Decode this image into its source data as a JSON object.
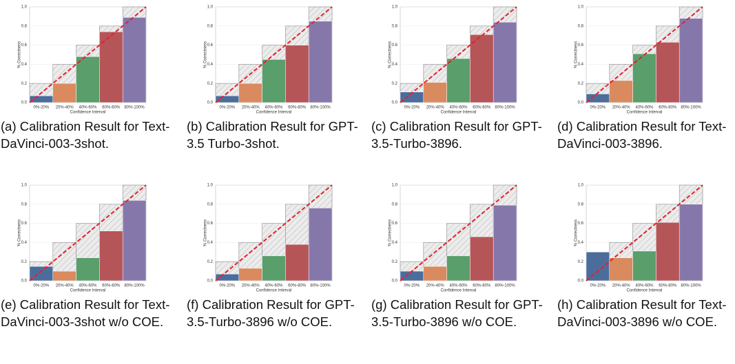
{
  "chart_data": [
    {
      "type": "bar",
      "caption": "(a) Calibration Result for Text-DaVinci-003-3shot.",
      "categories": [
        "0%-20%",
        "20%-40%",
        "40%-60%",
        "60%-80%",
        "80%-100%"
      ],
      "values": [
        0.07,
        0.2,
        0.48,
        0.74,
        0.89
      ],
      "reference": [
        0.2,
        0.4,
        0.6,
        0.8,
        1.0
      ],
      "colors": [
        "#4c6d9c",
        "#d98a5e",
        "#5a9e6b",
        "#b65558",
        "#8677ab"
      ],
      "xlabel": "Confidence Interval",
      "ylabel": "% Correctness",
      "ylim": [
        0,
        1
      ],
      "yticks": [
        {
          "value": 0,
          "label": "0.0"
        },
        0.2,
        0.4,
        0.6,
        0.8,
        {
          "value": 1,
          "label": "1.0"
        }
      ],
      "grid": true
    },
    {
      "type": "bar",
      "caption": "(b) Calibration Result for GPT-3.5 Turbo-3shot.",
      "categories": [
        "0%-20%",
        "20%-40%",
        "40%-60%",
        "60%-80%",
        "80%-100%"
      ],
      "values": [
        0.07,
        0.2,
        0.45,
        0.6,
        0.85
      ],
      "reference": [
        0.2,
        0.4,
        0.6,
        0.8,
        1.0
      ],
      "colors": [
        "#4c6d9c",
        "#d98a5e",
        "#5a9e6b",
        "#b65558",
        "#8677ab"
      ],
      "xlabel": "Confidence Interval",
      "ylabel": "% Correctness",
      "ylim": [
        0,
        1
      ],
      "yticks": [
        {
          "value": 0,
          "label": "0.0"
        },
        0.2,
        0.4,
        0.6,
        0.8,
        {
          "value": 1,
          "label": "1.0"
        }
      ],
      "grid": true
    },
    {
      "type": "bar",
      "caption": "(c) Calibration Result for GPT-3.5-Turbo-3896.",
      "categories": [
        "0%-20%",
        "20%-40%",
        "40%-60%",
        "60%-80%",
        "80%-100%"
      ],
      "values": [
        0.11,
        0.21,
        0.46,
        0.71,
        0.84
      ],
      "reference": [
        0.2,
        0.4,
        0.6,
        0.8,
        1.0
      ],
      "colors": [
        "#4c6d9c",
        "#d98a5e",
        "#5a9e6b",
        "#b65558",
        "#8677ab"
      ],
      "xlabel": "Confidence Interval",
      "ylabel": "% Correctness",
      "ylim": [
        0,
        1
      ],
      "yticks": [
        {
          "value": 0,
          "label": "0.0"
        },
        0.2,
        0.4,
        0.6,
        0.8,
        {
          "value": 1,
          "label": "1.0"
        }
      ],
      "grid": true
    },
    {
      "type": "bar",
      "caption": "(d) Calibration Result for Text-DaVinci-003-3896.",
      "categories": [
        "0%-20%",
        "20%-40%",
        "40%-60%",
        "60%-80%",
        "80%-100%"
      ],
      "values": [
        0.09,
        0.23,
        0.51,
        0.63,
        0.88
      ],
      "reference": [
        0.2,
        0.4,
        0.6,
        0.8,
        1.0
      ],
      "colors": [
        "#4c6d9c",
        "#d98a5e",
        "#5a9e6b",
        "#b65558",
        "#8677ab"
      ],
      "xlabel": "Confidence Interval",
      "ylabel": "% Correctness",
      "ylim": [
        0,
        1
      ],
      "yticks": [
        {
          "value": 0,
          "label": "0.0"
        },
        0.2,
        0.4,
        0.6,
        0.8,
        {
          "value": 1,
          "label": "1.0"
        }
      ],
      "grid": true
    },
    {
      "type": "bar",
      "caption": "(e) Calibration Result for Text-DaVinci-003-3shot w/o COE.",
      "categories": [
        "0%-20%",
        "20%-40%",
        "40%-60%",
        "60%-80%",
        "80%-100%"
      ],
      "values": [
        0.15,
        0.1,
        0.24,
        0.52,
        0.84
      ],
      "reference": [
        0.2,
        0.4,
        0.6,
        0.8,
        1.0
      ],
      "colors": [
        "#4c6d9c",
        "#d98a5e",
        "#5a9e6b",
        "#b65558",
        "#8677ab"
      ],
      "xlabel": "Confidence Interval",
      "ylabel": "% Correctness",
      "ylim": [
        0,
        1
      ],
      "yticks": [
        {
          "value": 0,
          "label": "0.0"
        },
        0.2,
        0.4,
        0.6,
        0.8,
        {
          "value": 1,
          "label": "1.0"
        }
      ],
      "grid": true
    },
    {
      "type": "bar",
      "caption": "(f) Calibration Result for GPT-3.5-Turbo-3896 w/o COE.",
      "categories": [
        "0%-20%",
        "20%-40%",
        "40%-60%",
        "60%-80%",
        "80%-100%"
      ],
      "values": [
        0.07,
        0.13,
        0.26,
        0.38,
        0.76
      ],
      "reference": [
        0.2,
        0.4,
        0.6,
        0.8,
        1.0
      ],
      "colors": [
        "#4c6d9c",
        "#d98a5e",
        "#5a9e6b",
        "#b65558",
        "#8677ab"
      ],
      "xlabel": "Confidence Interval",
      "ylabel": "% Correctness",
      "ylim": [
        0,
        1
      ],
      "yticks": [
        {
          "value": 0,
          "label": "0.0"
        },
        0.2,
        0.4,
        0.6,
        0.8,
        {
          "value": 1,
          "label": "1.0"
        }
      ],
      "grid": true
    },
    {
      "type": "bar",
      "caption": "(g) Calibration Result for GPT-3.5-Turbo-3896 w/o COE.",
      "categories": [
        "0%-20%",
        "20%-40%",
        "40%-60%",
        "60%-80%",
        "80%-100%"
      ],
      "values": [
        0.1,
        0.15,
        0.26,
        0.46,
        0.79
      ],
      "reference": [
        0.2,
        0.4,
        0.6,
        0.8,
        1.0
      ],
      "colors": [
        "#4c6d9c",
        "#d98a5e",
        "#5a9e6b",
        "#b65558",
        "#8677ab"
      ],
      "xlabel": "Confidence Interval",
      "ylabel": "% Correctness",
      "ylim": [
        0,
        1
      ],
      "yticks": [
        {
          "value": 0,
          "label": "0.0"
        },
        0.2,
        0.4,
        0.6,
        0.8,
        {
          "value": 1,
          "label": "1.0"
        }
      ],
      "grid": true
    },
    {
      "type": "bar",
      "caption": "(h) Calibration Result for Text-DaVinci-003-3896 w/o COE.",
      "categories": [
        "0%-20%",
        "20%-40%",
        "40%-60%",
        "60%-80%",
        "80%-100%"
      ],
      "values": [
        0.3,
        0.24,
        0.31,
        0.61,
        0.8
      ],
      "reference": [
        0.2,
        0.4,
        0.6,
        0.8,
        1.0
      ],
      "colors": [
        "#4c6d9c",
        "#d98a5e",
        "#5a9e6b",
        "#b65558",
        "#8677ab"
      ],
      "xlabel": "Confidence Interval",
      "ylabel": "% Correctness",
      "ylim": [
        0,
        1
      ],
      "yticks": [
        {
          "value": 0,
          "label": "0.0"
        },
        0.2,
        0.4,
        0.6,
        0.8,
        {
          "value": 1,
          "label": "1.0"
        }
      ],
      "grid": true
    }
  ]
}
